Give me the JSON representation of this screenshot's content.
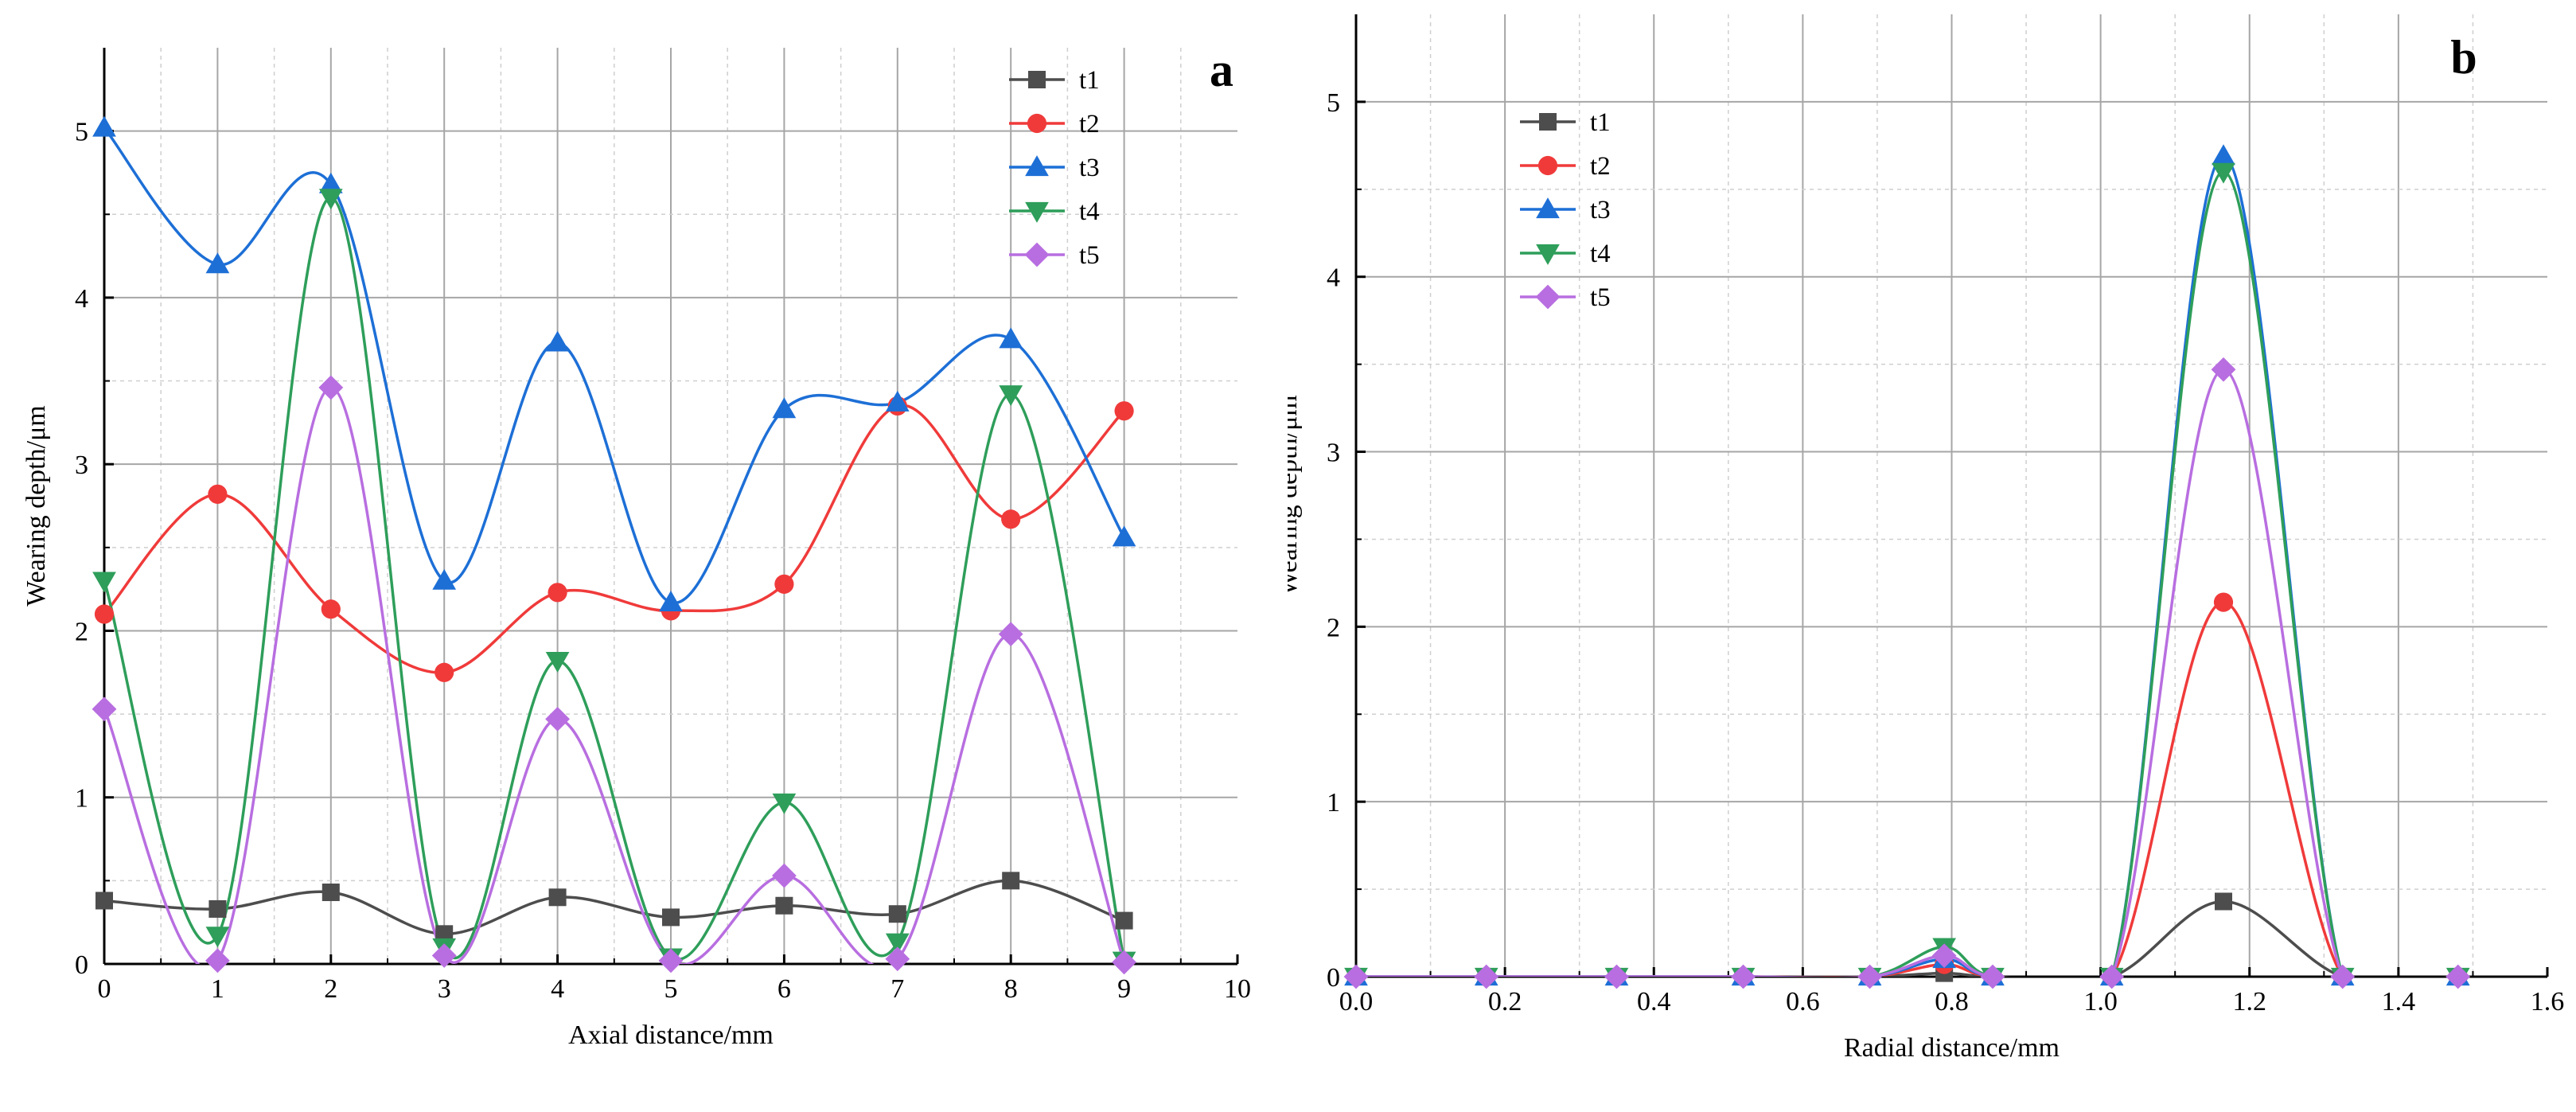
{
  "chart_data": [
    {
      "type": "line",
      "panel_label": "a",
      "xlabel": "Axial distance/mm",
      "ylabel": "Wearing depth/μm",
      "xlim": [
        0,
        10
      ],
      "ylim": [
        0,
        5.5
      ],
      "xticks": [
        "0",
        "1",
        "2",
        "3",
        "4",
        "5",
        "6",
        "7",
        "8",
        "9",
        "10"
      ],
      "yticks": [
        "0",
        "1",
        "2",
        "3",
        "4",
        "5"
      ],
      "grid": true,
      "legend_position": "top-right",
      "x": [
        0,
        1,
        2,
        3,
        4,
        5,
        6,
        7,
        8,
        9
      ],
      "series": [
        {
          "name": "t1",
          "color": "#4d4d4d",
          "marker": "square",
          "values": [
            0.38,
            0.33,
            0.43,
            0.18,
            0.4,
            0.28,
            0.35,
            0.3,
            0.5,
            0.26
          ]
        },
        {
          "name": "t2",
          "color": "#f03a3a",
          "marker": "circle",
          "values": [
            2.1,
            2.82,
            2.13,
            1.75,
            2.23,
            2.12,
            2.28,
            3.35,
            2.67,
            3.32
          ]
        },
        {
          "name": "t3",
          "color": "#1d6fd6",
          "marker": "triangle-up",
          "values": [
            5.02,
            4.2,
            4.68,
            2.3,
            3.73,
            2.17,
            3.33,
            3.37,
            3.75,
            2.56
          ]
        },
        {
          "name": "t4",
          "color": "#2e9e5a",
          "marker": "triangle-down",
          "values": [
            2.3,
            0.17,
            4.6,
            0.1,
            1.82,
            0.04,
            0.97,
            0.13,
            3.42,
            0.02
          ]
        },
        {
          "name": "t5",
          "color": "#b86ee0",
          "marker": "diamond",
          "values": [
            1.53,
            0.02,
            3.46,
            0.05,
            1.47,
            0.02,
            0.53,
            0.03,
            1.98,
            0.01
          ]
        }
      ]
    },
    {
      "type": "line",
      "panel_label": "b",
      "xlabel": "Radial distance/mm",
      "ylabel": "Wearing depth/μm",
      "xlim": [
        0,
        1.6
      ],
      "ylim": [
        0,
        5.5
      ],
      "xticks": [
        "0.0",
        "0.2",
        "0.4",
        "0.6",
        "0.8",
        "1.0",
        "1.2",
        "1.4",
        "1.6"
      ],
      "yticks": [
        "0",
        "1",
        "2",
        "3",
        "4",
        "5"
      ],
      "grid": true,
      "legend_position": "top-left",
      "x": [
        0.0,
        0.175,
        0.35,
        0.52,
        0.69,
        0.79,
        0.855,
        1.015,
        1.165,
        1.325,
        1.48
      ],
      "series": [
        {
          "name": "t1",
          "color": "#4d4d4d",
          "marker": "square",
          "values": [
            0,
            0,
            0,
            0,
            0,
            0.02,
            0,
            0,
            0.43,
            0,
            0
          ]
        },
        {
          "name": "t2",
          "color": "#f03a3a",
          "marker": "circle",
          "values": [
            0,
            0,
            0,
            0,
            0,
            0.07,
            0,
            0,
            2.14,
            0,
            0
          ]
        },
        {
          "name": "t3",
          "color": "#1d6fd6",
          "marker": "triangle-up",
          "values": [
            0,
            0,
            0,
            0,
            0,
            0.1,
            0,
            0,
            4.69,
            0,
            0
          ]
        },
        {
          "name": "t4",
          "color": "#2e9e5a",
          "marker": "triangle-down",
          "values": [
            0,
            0,
            0,
            0,
            0,
            0.17,
            0,
            0,
            4.6,
            0,
            0
          ]
        },
        {
          "name": "t5",
          "color": "#b86ee0",
          "marker": "diamond",
          "values": [
            0,
            0,
            0,
            0,
            0,
            0.12,
            0,
            0,
            3.47,
            0,
            0
          ]
        }
      ]
    }
  ]
}
